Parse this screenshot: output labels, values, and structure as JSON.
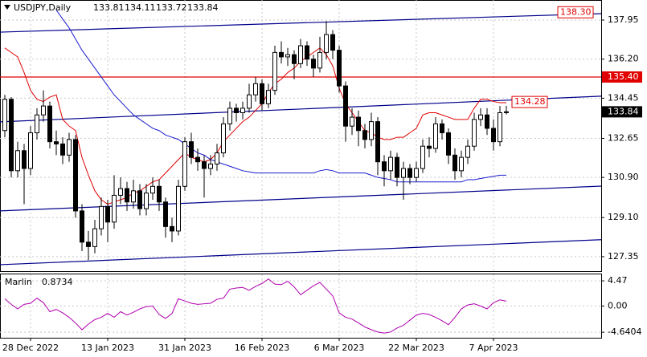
{
  "chart_data": {
    "type": "candlestick",
    "symbol": "USDJPY,Daily",
    "categories": [
      null,
      null,
      null,
      null,
      "28 Dec 2022",
      null,
      null,
      null,
      null,
      null,
      null,
      null,
      null,
      null,
      null,
      null,
      "13 Jan 2023",
      null,
      null,
      null,
      null,
      null,
      null,
      null,
      null,
      null,
      null,
      null,
      "31 Jan 2023",
      null,
      null,
      null,
      null,
      null,
      null,
      null,
      null,
      null,
      null,
      null,
      "16 Feb 2023",
      null,
      null,
      null,
      null,
      null,
      null,
      null,
      null,
      null,
      null,
      null,
      "6 Mar 2023",
      null,
      null,
      null,
      null,
      null,
      null,
      null,
      null,
      null,
      null,
      null,
      "22 Mar 2023",
      null,
      null,
      null,
      null,
      null,
      null,
      null,
      null,
      null,
      null,
      null,
      "7 Apr 2023",
      null,
      null
    ],
    "ohlc": [
      [
        133.0,
        134.6,
        132.7,
        134.4
      ],
      [
        134.4,
        134.5,
        130.9,
        131.2
      ],
      [
        131.2,
        132.5,
        130.9,
        132.1
      ],
      [
        132.1,
        132.4,
        129.7,
        131.3
      ],
      [
        131.3,
        133.2,
        131.0,
        132.9
      ],
      [
        132.9,
        134.0,
        132.6,
        133.7
      ],
      [
        133.7,
        134.8,
        133.4,
        134.1
      ],
      [
        134.1,
        134.3,
        132.2,
        132.5
      ],
      [
        132.5,
        133.0,
        131.9,
        132.4
      ],
      [
        132.4,
        132.7,
        131.5,
        131.9
      ],
      [
        131.9,
        132.9,
        131.6,
        132.6
      ],
      [
        132.6,
        132.8,
        129.1,
        129.4
      ],
      [
        129.4,
        129.7,
        127.6,
        128.0
      ],
      [
        128.0,
        128.5,
        127.2,
        127.8
      ],
      [
        127.8,
        129.0,
        127.5,
        128.6
      ],
      [
        128.6,
        130.0,
        128.3,
        129.6
      ],
      [
        129.6,
        129.9,
        128.0,
        128.9
      ],
      [
        128.9,
        131.0,
        128.6,
        130.1
      ],
      [
        130.1,
        130.9,
        129.7,
        130.4
      ],
      [
        130.4,
        130.7,
        129.4,
        129.8
      ],
      [
        129.8,
        130.8,
        129.5,
        130.3
      ],
      [
        130.3,
        130.6,
        129.2,
        129.5
      ],
      [
        129.5,
        130.6,
        129.2,
        130.2
      ],
      [
        130.2,
        130.9,
        129.9,
        130.5
      ],
      [
        130.5,
        130.8,
        129.4,
        129.8
      ],
      [
        129.8,
        130.0,
        128.2,
        128.7
      ],
      [
        128.7,
        129.1,
        128.0,
        128.5
      ],
      [
        128.5,
        130.8,
        128.3,
        130.5
      ],
      [
        130.5,
        132.7,
        130.3,
        132.5
      ],
      [
        132.5,
        132.9,
        131.5,
        131.8
      ],
      [
        131.8,
        132.2,
        131.2,
        131.6
      ],
      [
        131.6,
        131.9,
        130.0,
        131.3
      ],
      [
        131.3,
        131.9,
        131.0,
        131.5
      ],
      [
        131.5,
        132.4,
        131.2,
        132.0
      ],
      [
        132.0,
        133.6,
        131.8,
        133.3
      ],
      [
        133.3,
        134.3,
        133.0,
        134.0
      ],
      [
        134.0,
        134.2,
        133.4,
        133.8
      ],
      [
        133.8,
        134.3,
        133.5,
        134.0
      ],
      [
        134.0,
        135.1,
        133.8,
        134.6
      ],
      [
        134.6,
        135.4,
        134.3,
        135.1
      ],
      [
        135.1,
        135.3,
        133.9,
        134.2
      ],
      [
        134.2,
        135.1,
        134.0,
        134.8
      ],
      [
        134.8,
        136.8,
        134.6,
        136.5
      ],
      [
        136.5,
        137.0,
        136.0,
        136.3
      ],
      [
        136.3,
        136.7,
        135.9,
        136.4
      ],
      [
        136.4,
        136.6,
        135.3,
        136.0
      ],
      [
        136.0,
        137.1,
        135.8,
        136.8
      ],
      [
        136.8,
        137.0,
        135.9,
        136.2
      ],
      [
        136.2,
        136.4,
        135.4,
        135.8
      ],
      [
        135.8,
        137.2,
        135.6,
        136.5
      ],
      [
        136.5,
        137.9,
        136.2,
        137.3
      ],
      [
        137.3,
        137.5,
        136.2,
        136.6
      ],
      [
        136.6,
        136.8,
        134.7,
        135.0
      ],
      [
        135.0,
        135.2,
        132.5,
        133.2
      ],
      [
        133.2,
        134.0,
        132.8,
        133.6
      ],
      [
        133.6,
        133.9,
        132.3,
        133.0
      ],
      [
        133.0,
        133.3,
        132.2,
        132.6
      ],
      [
        132.6,
        133.8,
        132.3,
        133.4
      ],
      [
        133.4,
        133.6,
        131.0,
        131.6
      ],
      [
        131.6,
        131.9,
        130.5,
        131.2
      ],
      [
        131.2,
        132.1,
        130.8,
        131.8
      ],
      [
        131.8,
        132.0,
        130.5,
        130.9
      ],
      [
        130.9,
        131.6,
        129.9,
        131.3
      ],
      [
        131.3,
        131.5,
        130.6,
        130.9
      ],
      [
        130.9,
        131.6,
        130.7,
        131.3
      ],
      [
        131.3,
        132.6,
        131.1,
        132.3
      ],
      [
        132.3,
        132.7,
        131.8,
        132.2
      ],
      [
        132.2,
        133.6,
        132.0,
        133.3
      ],
      [
        133.3,
        133.5,
        132.6,
        132.9
      ],
      [
        132.9,
        133.1,
        131.5,
        131.9
      ],
      [
        131.9,
        132.2,
        130.8,
        131.2
      ],
      [
        131.2,
        132.1,
        130.9,
        131.8
      ],
      [
        131.8,
        132.6,
        131.5,
        132.3
      ],
      [
        132.3,
        133.8,
        132.1,
        133.5
      ],
      [
        133.5,
        134.0,
        133.2,
        133.7
      ],
      [
        133.7,
        134.0,
        132.8,
        133.1
      ],
      [
        133.1,
        133.5,
        132.1,
        132.5
      ],
      [
        132.5,
        134.1,
        132.3,
        133.8
      ],
      [
        133.81,
        134.11,
        133.72,
        133.84
      ]
    ],
    "series": [
      {
        "color": "#e00000",
        "values": [
          136.7,
          136.5,
          136.3,
          135.6,
          134.8,
          134.4,
          134.3,
          134.5,
          134.6,
          133.5,
          133.2,
          133.0,
          131.8,
          131.0,
          130.3,
          129.9,
          129.7,
          129.8,
          129.9,
          130.0,
          130.2,
          130.3,
          130.5,
          130.7,
          130.8,
          131.1,
          131.4,
          131.7,
          132.0,
          131.8,
          131.7,
          131.6,
          131.7,
          132.0,
          132.5,
          132.8,
          133.1,
          133.4,
          133.6,
          133.9,
          134.2,
          134.7,
          135.1,
          135.3,
          135.6,
          135.8,
          136.1,
          136.3,
          136.5,
          136.7,
          136.4,
          135.9,
          134.9,
          134.2,
          133.8,
          133.4,
          133.0,
          132.9,
          132.7,
          132.6,
          132.6,
          132.7,
          132.7,
          132.9,
          133.1,
          133.7,
          133.8,
          133.8,
          133.7,
          133.6,
          133.5,
          133.5,
          133.5,
          134.0,
          134.4,
          134.4,
          134.3,
          134.25,
          134.25
        ]
      },
      {
        "color": "#1a1ad0",
        "values": [
          null,
          null,
          null,
          null,
          null,
          null,
          null,
          null,
          138.4,
          138.0,
          137.6,
          137.1,
          136.6,
          136.2,
          135.8,
          135.4,
          135.0,
          134.6,
          134.3,
          134.0,
          133.7,
          133.5,
          133.3,
          133.1,
          133.0,
          132.8,
          132.7,
          132.6,
          132.4,
          132.2,
          132.0,
          131.9,
          131.7,
          131.6,
          131.5,
          131.4,
          131.3,
          131.2,
          131.15,
          131.1,
          131.1,
          131.1,
          131.1,
          131.1,
          131.1,
          131.1,
          131.1,
          131.1,
          131.1,
          131.2,
          131.25,
          131.2,
          131.1,
          131.1,
          131.1,
          131.1,
          131.1,
          131.0,
          130.9,
          130.85,
          130.8,
          130.7,
          130.7,
          130.7,
          130.7,
          130.7,
          130.7,
          130.7,
          130.7,
          130.7,
          130.7,
          130.7,
          130.8,
          130.8,
          130.85,
          130.9,
          130.95,
          131.0,
          131.0
        ]
      }
    ],
    "trendlines": [
      [
        137.41,
        138.24
      ],
      [
        133.39,
        134.54
      ],
      [
        129.4,
        130.51
      ],
      [
        126.99,
        128.11
      ]
    ],
    "level": {
      "value": 135.4,
      "label": "135.40",
      "color": "#e00000"
    },
    "price_marks": [
      {
        "value": 138.3,
        "label": "138.30"
      },
      {
        "value": 134.28,
        "label": "134.28"
      }
    ],
    "ylim": [
      126.7,
      138.85
    ],
    "yticks": [
      127.35,
      {
        "value": 129.1,
        "label": "129.10"
      },
      {
        "value": 130.9,
        "label": "130.90"
      },
      132.65,
      134.45,
      {
        "value": 136.2,
        "label": "136.20"
      },
      137.95
    ],
    "grid": true,
    "indicator": {
      "name": "Marlin",
      "color": "#b000b0",
      "ylim": [
        -5.62,
        5.62
      ],
      "yticks": [
        4.47,
        {
          "value": 0,
          "label": "0.00"
        },
        -4.6404
      ],
      "values": [
        1.3,
        0.3,
        -0.5,
        0.3,
        0.5,
        1.4,
        0.6,
        -1.0,
        -0.6,
        -1.2,
        -2.0,
        -3.0,
        -4.2,
        -3.2,
        -2.4,
        -2.0,
        -1.3,
        -2.0,
        -1.0,
        -1.6,
        -1.1,
        -0.5,
        -0.1,
        0.0,
        -1.5,
        -2.2,
        -1.3,
        1.3,
        0.9,
        0.5,
        0.3,
        0.4,
        0.5,
        1.2,
        1.4,
        3.0,
        3.2,
        3.3,
        2.8,
        3.5,
        4.0,
        4.8,
        3.9,
        3.8,
        4.4,
        3.4,
        2.0,
        2.8,
        3.6,
        4.2,
        3.0,
        1.8,
        -1.2,
        -2.0,
        -2.3,
        -3.0,
        -3.7,
        -4.2,
        -4.6,
        -4.8,
        -4.6,
        -3.9,
        -3.4,
        -2.5,
        -1.6,
        -1.3,
        -1.5,
        -2.0,
        -2.6,
        -3.3,
        -2.0,
        -0.5,
        0.2,
        0.4,
        0.0,
        -0.5,
        0.6,
        1.1,
        0.8734
      ]
    }
  }
}
